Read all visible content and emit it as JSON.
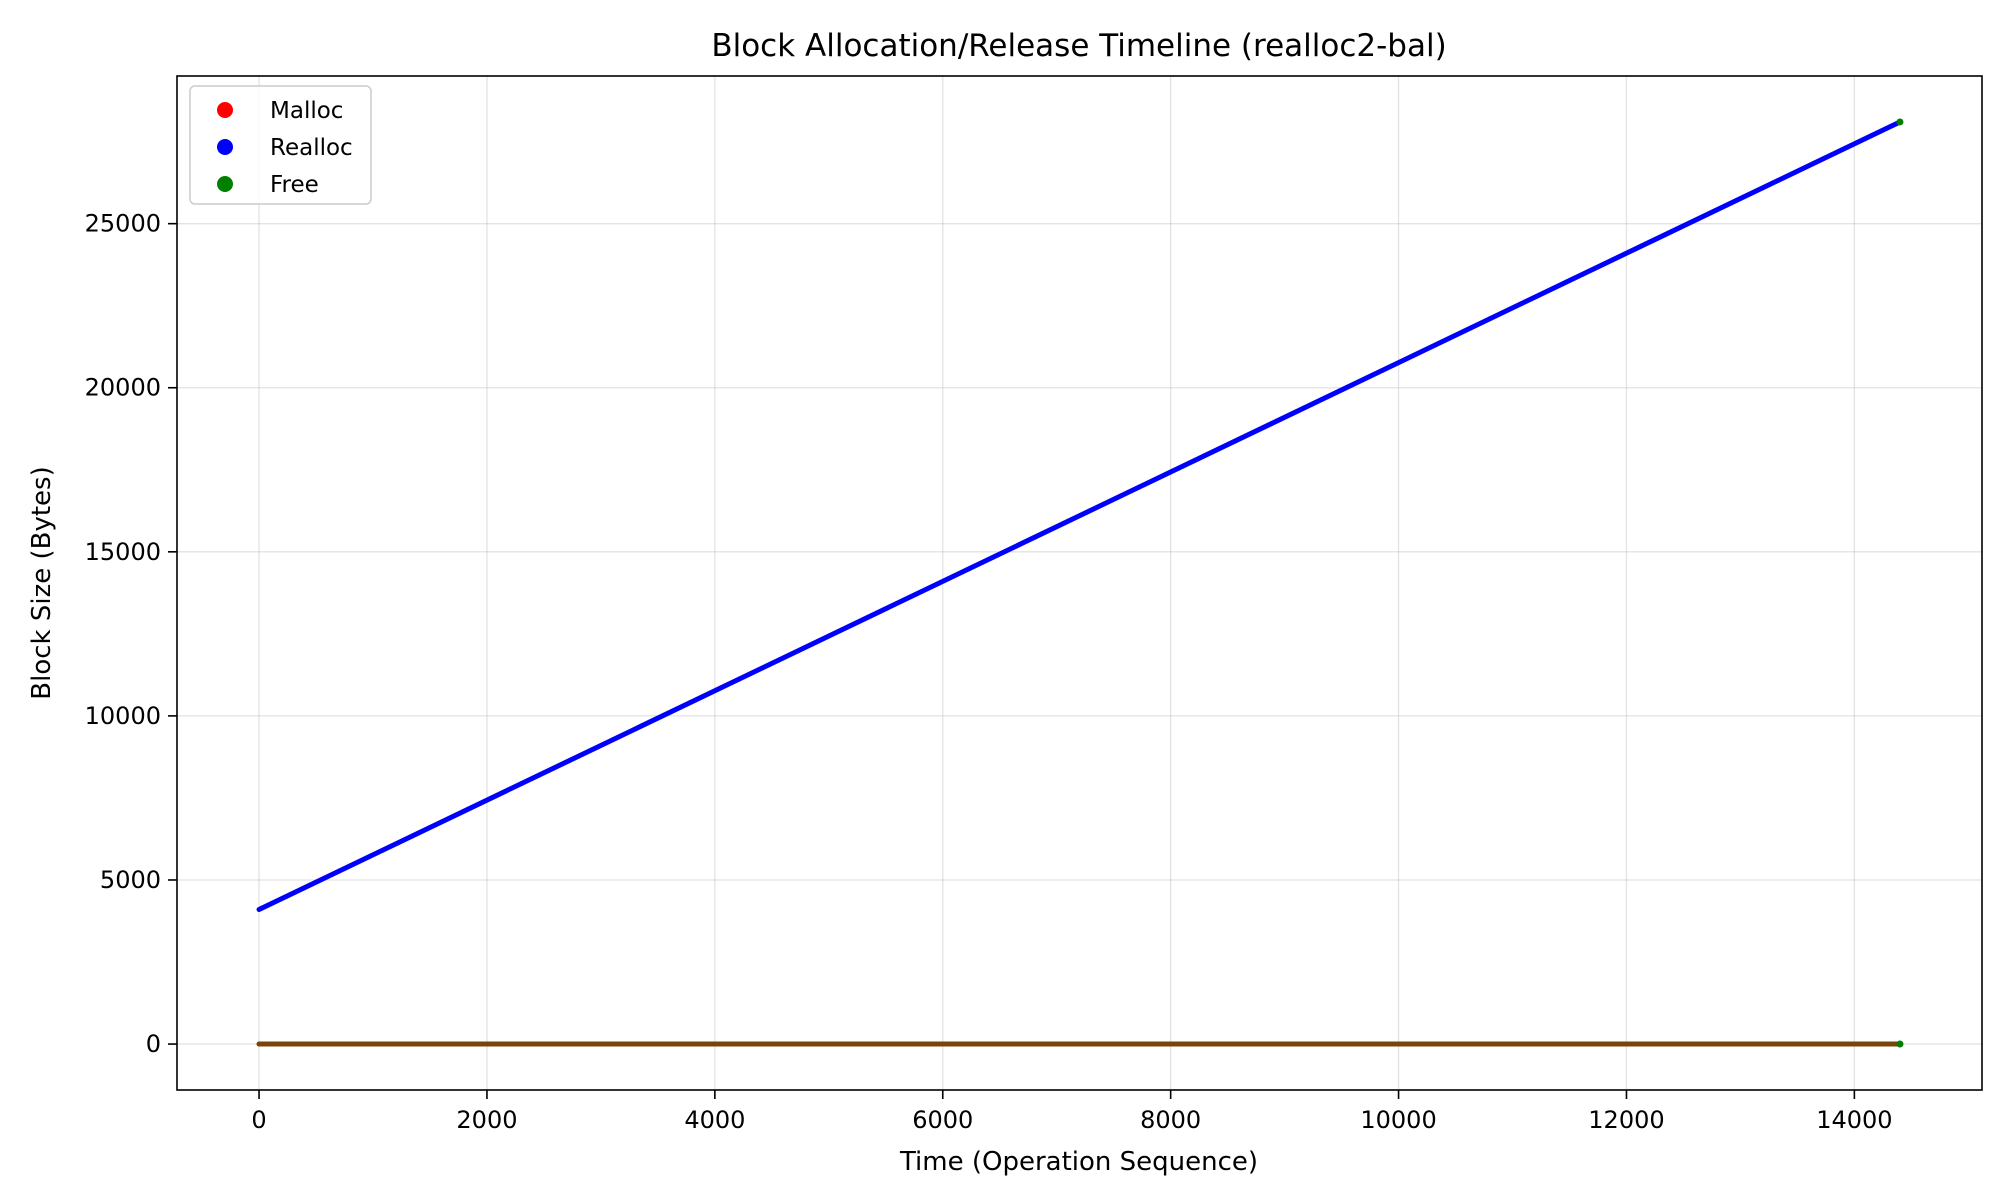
{
  "chart_data": {
    "type": "scatter",
    "title": "Block Allocation/Release Timeline (realloc2-bal)",
    "xlabel": "Time (Operation Sequence)",
    "ylabel": "Block Size (Bytes)",
    "xlim": [
      -720,
      15120
    ],
    "ylim": [
      -1400,
      29500
    ],
    "xticks": [
      0,
      2000,
      4000,
      6000,
      8000,
      10000,
      12000,
      14000
    ],
    "yticks": [
      0,
      5000,
      10000,
      15000,
      20000,
      25000
    ],
    "grid": true,
    "legend_position": "top-left",
    "series": [
      {
        "name": "Malloc",
        "color": "#ff0000",
        "points": [
          [
            0,
            0
          ],
          [
            14400,
            0
          ]
        ]
      },
      {
        "name": "Realloc",
        "color": "#0000ff",
        "points": [
          [
            0,
            4100
          ],
          [
            14400,
            28100
          ]
        ]
      },
      {
        "name": "Free",
        "color": "#008000",
        "points": [
          [
            0,
            0
          ],
          [
            14400,
            0
          ],
          [
            14400,
            28100
          ]
        ]
      }
    ]
  }
}
